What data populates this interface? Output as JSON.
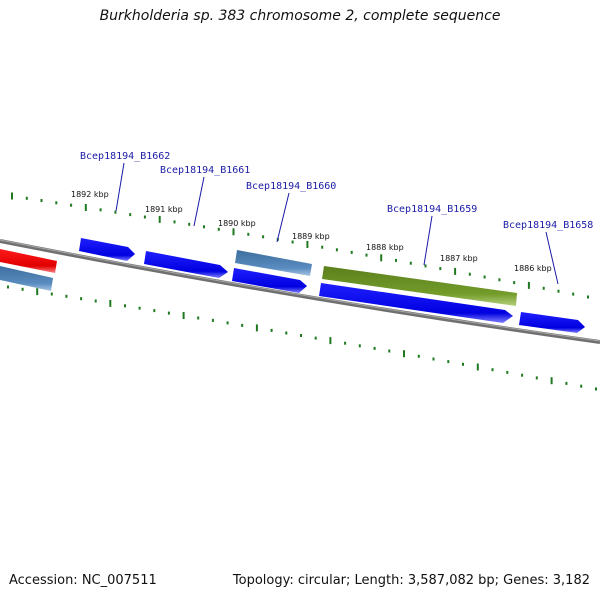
{
  "title": "Burkholderia sp. 383 chromosome 2, complete sequence",
  "footer": {
    "accession": "Accession: NC_007511",
    "summary": "Topology: circular; Length: 3,587,082 bp; Genes: 3,182"
  },
  "colors": {
    "forward_gene": "#0000ee",
    "pseudo_gene": "#4a7fb5",
    "rna_gene": "#6b8e23",
    "highlight_gene": "#ee0000",
    "backbone": "#808080",
    "tick": "#1f7a1f",
    "label_line": "#1a1aa6"
  },
  "ruler": {
    "tick_labels": [
      "1892 kbp",
      "1891 kbp",
      "1890 kbp",
      "1889 kbp",
      "1888 kbp",
      "1887 kbp",
      "1886 kbp"
    ]
  },
  "genes": [
    {
      "name": "Bcep18194_B1662"
    },
    {
      "name": "Bcep18194_B1661"
    },
    {
      "name": "Bcep18194_B1660"
    },
    {
      "name": "Bcep18194_B1659"
    },
    {
      "name": "Bcep18194_B1658"
    }
  ]
}
